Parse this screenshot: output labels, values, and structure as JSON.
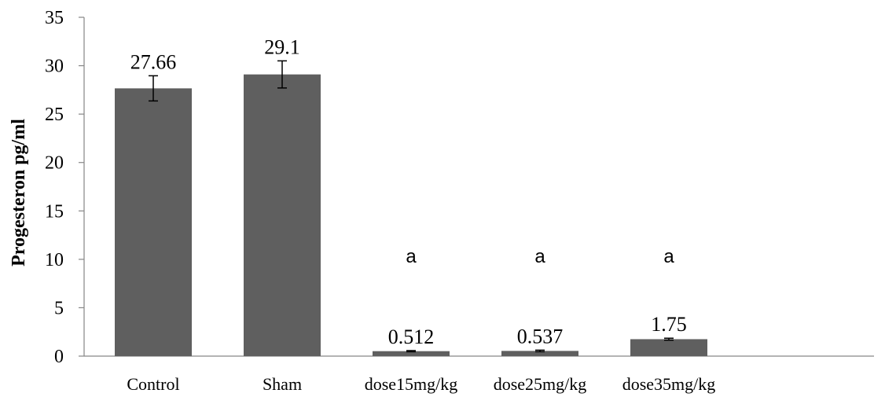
{
  "chart_data": {
    "type": "bar",
    "title": "",
    "xlabel": "",
    "ylabel": "Progesteron pg/ml",
    "ylim": [
      0,
      35
    ],
    "yticks": [
      0,
      5,
      10,
      15,
      20,
      25,
      30,
      35
    ],
    "grid": false,
    "legend": "none",
    "bar_color": "#5f5f5f",
    "categories": [
      "Control",
      "Sham",
      "dose15mg/kg",
      "dose25mg/kg",
      "dose35mg/kg"
    ],
    "values": [
      27.66,
      29.1,
      0.512,
      0.537,
      1.75
    ],
    "data_labels": [
      "27.66",
      "29.1",
      "0.512",
      "0.537",
      "1.75"
    ],
    "error": [
      1.3,
      1.4,
      0.06,
      0.08,
      0.1
    ],
    "annotations": [
      "",
      "",
      "a",
      "a",
      "a"
    ]
  }
}
